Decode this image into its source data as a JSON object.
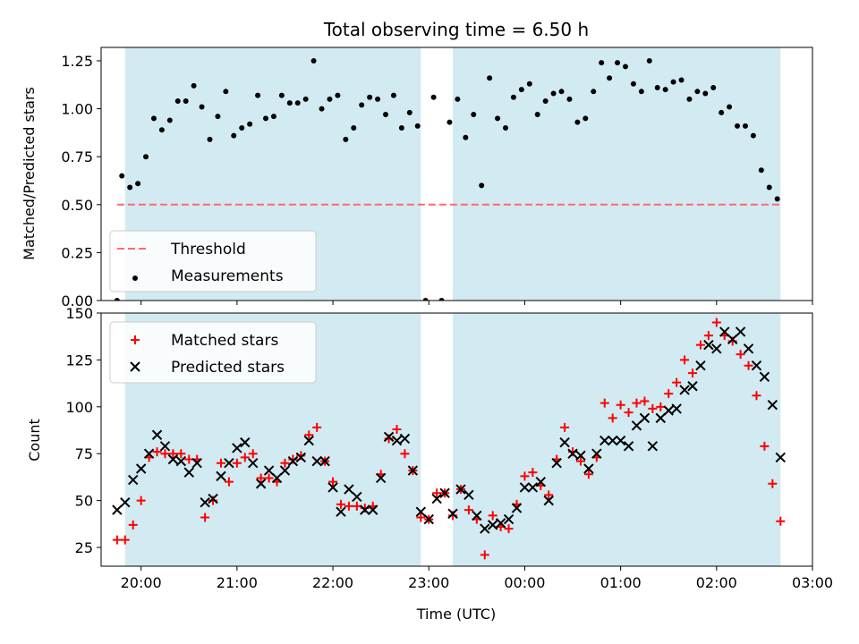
{
  "figure": {
    "title": "Total observing time = 6.50 h",
    "xlabel": "Time (UTC)"
  },
  "colors": {
    "shade": "#add8e6",
    "threshold": "#ff6b6b",
    "matched": "#ff0000",
    "predicted": "#000000",
    "measurement": "#000000"
  },
  "chart_data": [
    {
      "type": "scatter",
      "name": "ratio-panel",
      "ylabel": "Matched/Predicted stars",
      "xlim": [
        "19:35",
        "03:00"
      ],
      "ylim": [
        0,
        1.32
      ],
      "yticks": [
        "0.00",
        "0.25",
        "0.50",
        "0.75",
        "1.00",
        "1.25"
      ],
      "shaded_intervals": [
        [
          "19:50",
          "22:55"
        ],
        [
          "23:15",
          "02:40"
        ]
      ],
      "threshold": {
        "label": "Threshold",
        "y": 0.5,
        "x_range": [
          "19:45",
          "02:40"
        ],
        "style": "dashed"
      },
      "legend": {
        "placement": "lower-left",
        "entries": [
          "Threshold",
          "Measurements"
        ]
      },
      "series": [
        {
          "name": "Measurements",
          "points": [
            [
              "19:45",
              0.0
            ],
            [
              "19:48",
              0.65
            ],
            [
              "19:53",
              0.59
            ],
            [
              "19:58",
              0.61
            ],
            [
              "20:03",
              0.75
            ],
            [
              "20:08",
              0.95
            ],
            [
              "20:13",
              0.89
            ],
            [
              "20:18",
              0.94
            ],
            [
              "20:23",
              1.04
            ],
            [
              "20:28",
              1.04
            ],
            [
              "20:33",
              1.12
            ],
            [
              "20:38",
              1.01
            ],
            [
              "20:43",
              0.84
            ],
            [
              "20:48",
              0.96
            ],
            [
              "20:53",
              1.09
            ],
            [
              "20:58",
              0.86
            ],
            [
              "21:03",
              0.9
            ],
            [
              "21:08",
              0.92
            ],
            [
              "21:13",
              1.07
            ],
            [
              "21:18",
              0.95
            ],
            [
              "21:23",
              0.96
            ],
            [
              "21:28",
              1.07
            ],
            [
              "21:33",
              1.03
            ],
            [
              "21:38",
              1.03
            ],
            [
              "21:43",
              1.05
            ],
            [
              "21:48",
              1.25
            ],
            [
              "21:53",
              1.0
            ],
            [
              "21:58",
              1.05
            ],
            [
              "22:03",
              1.07
            ],
            [
              "22:08",
              0.84
            ],
            [
              "22:13",
              0.9
            ],
            [
              "22:18",
              1.02
            ],
            [
              "22:23",
              1.06
            ],
            [
              "22:28",
              1.05
            ],
            [
              "22:33",
              0.97
            ],
            [
              "22:38",
              1.07
            ],
            [
              "22:43",
              0.9
            ],
            [
              "22:48",
              0.98
            ],
            [
              "22:53",
              0.91
            ],
            [
              "22:58",
              0.0
            ],
            [
              "23:03",
              1.06
            ],
            [
              "23:08",
              0.0
            ],
            [
              "23:13",
              0.93
            ],
            [
              "23:18",
              1.05
            ],
            [
              "23:23",
              0.85
            ],
            [
              "23:28",
              0.97
            ],
            [
              "23:33",
              0.6
            ],
            [
              "23:38",
              1.16
            ],
            [
              "23:43",
              0.95
            ],
            [
              "23:48",
              0.9
            ],
            [
              "23:53",
              1.06
            ],
            [
              "23:58",
              1.1
            ],
            [
              "00:03",
              1.13
            ],
            [
              "00:08",
              0.97
            ],
            [
              "00:13",
              1.04
            ],
            [
              "00:18",
              1.08
            ],
            [
              "00:23",
              1.09
            ],
            [
              "00:28",
              1.05
            ],
            [
              "00:33",
              0.93
            ],
            [
              "00:38",
              0.95
            ],
            [
              "00:43",
              1.09
            ],
            [
              "00:48",
              1.24
            ],
            [
              "00:53",
              1.16
            ],
            [
              "00:58",
              1.24
            ],
            [
              "01:03",
              1.22
            ],
            [
              "01:08",
              1.13
            ],
            [
              "01:13",
              1.09
            ],
            [
              "01:18",
              1.25
            ],
            [
              "01:23",
              1.11
            ],
            [
              "01:28",
              1.1
            ],
            [
              "01:33",
              1.14
            ],
            [
              "01:38",
              1.15
            ],
            [
              "01:43",
              1.05
            ],
            [
              "01:48",
              1.09
            ],
            [
              "01:53",
              1.08
            ],
            [
              "01:58",
              1.11
            ],
            [
              "02:03",
              0.98
            ],
            [
              "02:08",
              1.01
            ],
            [
              "02:13",
              0.91
            ],
            [
              "02:18",
              0.91
            ],
            [
              "02:23",
              0.86
            ],
            [
              "02:28",
              0.68
            ],
            [
              "02:33",
              0.59
            ],
            [
              "02:38",
              0.53
            ]
          ]
        }
      ]
    },
    {
      "type": "scatter",
      "name": "count-panel",
      "ylabel": "Count",
      "xlim": [
        "19:35",
        "03:00"
      ],
      "ylim": [
        15,
        150
      ],
      "yticks": [
        "25",
        "50",
        "75",
        "100",
        "125",
        "150"
      ],
      "xticks": [
        "20:00",
        "21:00",
        "22:00",
        "23:00",
        "00:00",
        "01:00",
        "02:00",
        "03:00"
      ],
      "shaded_intervals": [
        [
          "19:50",
          "22:55"
        ],
        [
          "23:15",
          "02:40"
        ]
      ],
      "legend": {
        "placement": "top-left",
        "entries": [
          "Matched stars",
          "Predicted stars"
        ]
      },
      "series": [
        {
          "name": "Matched stars",
          "marker": "plus",
          "points": [
            [
              "19:45",
              29
            ],
            [
              "19:50",
              29
            ],
            [
              "19:55",
              37
            ],
            [
              "20:00",
              50
            ],
            [
              "20:05",
              73
            ],
            [
              "20:10",
              76
            ],
            [
              "20:15",
              75
            ],
            [
              "20:20",
              75
            ],
            [
              "20:25",
              75
            ],
            [
              "20:30",
              72
            ],
            [
              "20:35",
              72
            ],
            [
              "20:40",
              41
            ],
            [
              "20:45",
              50
            ],
            [
              "20:50",
              70
            ],
            [
              "20:55",
              60
            ],
            [
              "21:00",
              70
            ],
            [
              "21:05",
              73
            ],
            [
              "21:10",
              75
            ],
            [
              "21:15",
              62
            ],
            [
              "21:20",
              62
            ],
            [
              "21:25",
              60
            ],
            [
              "21:30",
              70
            ],
            [
              "21:35",
              72
            ],
            [
              "21:40",
              74
            ],
            [
              "21:45",
              85
            ],
            [
              "21:50",
              89
            ],
            [
              "21:55",
              71
            ],
            [
              "22:00",
              60
            ],
            [
              "22:05",
              48
            ],
            [
              "22:10",
              47
            ],
            [
              "22:15",
              47
            ],
            [
              "22:20",
              46
            ],
            [
              "22:25",
              47
            ],
            [
              "22:30",
              64
            ],
            [
              "22:35",
              83
            ],
            [
              "22:40",
              88
            ],
            [
              "22:45",
              75
            ],
            [
              "22:50",
              66
            ],
            [
              "22:55",
              41
            ],
            [
              "23:00",
              40
            ],
            [
              "23:05",
              54
            ],
            [
              "23:10",
              54
            ],
            [
              "23:15",
              42
            ],
            [
              "23:20",
              56
            ],
            [
              "23:25",
              45
            ],
            [
              "23:30",
              40
            ],
            [
              "23:35",
              21
            ],
            [
              "23:40",
              42
            ],
            [
              "23:45",
              36
            ],
            [
              "23:50",
              35
            ],
            [
              "23:55",
              48
            ],
            [
              "00:00",
              63
            ],
            [
              "00:05",
              65
            ],
            [
              "00:10",
              58
            ],
            [
              "00:15",
              53
            ],
            [
              "00:20",
              72
            ],
            [
              "00:25",
              89
            ],
            [
              "00:30",
              76
            ],
            [
              "00:35",
              71
            ],
            [
              "00:40",
              64
            ],
            [
              "00:45",
              73
            ],
            [
              "00:50",
              102
            ],
            [
              "00:55",
              94
            ],
            [
              "01:00",
              101
            ],
            [
              "01:05",
              97
            ],
            [
              "01:10",
              102
            ],
            [
              "01:15",
              103
            ],
            [
              "01:20",
              99
            ],
            [
              "01:25",
              100
            ],
            [
              "01:30",
              107
            ],
            [
              "01:35",
              113
            ],
            [
              "01:40",
              125
            ],
            [
              "01:45",
              118
            ],
            [
              "01:50",
              133
            ],
            [
              "01:55",
              138
            ],
            [
              "02:00",
              145
            ],
            [
              "02:05",
              138
            ],
            [
              "02:10",
              135
            ],
            [
              "02:15",
              128
            ],
            [
              "02:20",
              122
            ],
            [
              "02:25",
              106
            ],
            [
              "02:30",
              79
            ],
            [
              "02:35",
              59
            ],
            [
              "02:40",
              39
            ]
          ]
        },
        {
          "name": "Predicted stars",
          "marker": "x",
          "points": [
            [
              "19:45",
              45
            ],
            [
              "19:50",
              49
            ],
            [
              "19:55",
              61
            ],
            [
              "20:00",
              67
            ],
            [
              "20:05",
              75
            ],
            [
              "20:10",
              85
            ],
            [
              "20:15",
              79
            ],
            [
              "20:20",
              72
            ],
            [
              "20:25",
              71
            ],
            [
              "20:30",
              65
            ],
            [
              "20:35",
              70
            ],
            [
              "20:40",
              49
            ],
            [
              "20:45",
              51
            ],
            [
              "20:50",
              63
            ],
            [
              "20:55",
              70
            ],
            [
              "21:00",
              78
            ],
            [
              "21:05",
              81
            ],
            [
              "21:10",
              70
            ],
            [
              "21:15",
              59
            ],
            [
              "21:20",
              66
            ],
            [
              "21:25",
              62
            ],
            [
              "21:30",
              66
            ],
            [
              "21:35",
              71
            ],
            [
              "21:40",
              73
            ],
            [
              "21:45",
              82
            ],
            [
              "21:50",
              71
            ],
            [
              "21:55",
              71
            ],
            [
              "22:00",
              57
            ],
            [
              "22:05",
              44
            ],
            [
              "22:10",
              56
            ],
            [
              "22:15",
              52
            ],
            [
              "22:20",
              45
            ],
            [
              "22:25",
              45
            ],
            [
              "22:30",
              62
            ],
            [
              "22:35",
              84
            ],
            [
              "22:40",
              82
            ],
            [
              "22:45",
              83
            ],
            [
              "22:50",
              66
            ],
            [
              "22:55",
              44
            ],
            [
              "23:00",
              40
            ],
            [
              "23:05",
              51
            ],
            [
              "23:10",
              54
            ],
            [
              "23:15",
              43
            ],
            [
              "23:20",
              56
            ],
            [
              "23:25",
              53
            ],
            [
              "23:30",
              42
            ],
            [
              "23:35",
              35
            ],
            [
              "23:40",
              37
            ],
            [
              "23:45",
              38
            ],
            [
              "23:50",
              40
            ],
            [
              "23:55",
              46
            ],
            [
              "00:00",
              57
            ],
            [
              "00:05",
              57
            ],
            [
              "00:10",
              60
            ],
            [
              "00:15",
              50
            ],
            [
              "00:20",
              70
            ],
            [
              "00:25",
              81
            ],
            [
              "00:30",
              75
            ],
            [
              "00:35",
              74
            ],
            [
              "00:40",
              67
            ],
            [
              "00:45",
              75
            ],
            [
              "00:50",
              82
            ],
            [
              "00:55",
              82
            ],
            [
              "01:00",
              82
            ],
            [
              "01:05",
              79
            ],
            [
              "01:10",
              90
            ],
            [
              "01:15",
              94
            ],
            [
              "01:20",
              79
            ],
            [
              "01:25",
              94
            ],
            [
              "01:30",
              98
            ],
            [
              "01:35",
              99
            ],
            [
              "01:40",
              109
            ],
            [
              "01:45",
              111
            ],
            [
              "01:50",
              122
            ],
            [
              "01:55",
              133
            ],
            [
              "02:00",
              131
            ],
            [
              "02:05",
              140
            ],
            [
              "02:10",
              136
            ],
            [
              "02:15",
              140
            ],
            [
              "02:20",
              131
            ],
            [
              "02:25",
              122
            ],
            [
              "02:30",
              116
            ],
            [
              "02:35",
              101
            ],
            [
              "02:40",
              73
            ]
          ]
        }
      ]
    }
  ]
}
